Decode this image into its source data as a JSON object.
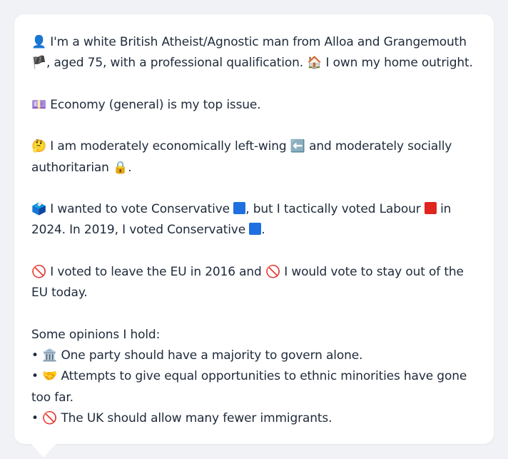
{
  "profile": {
    "p1": {
      "e1": "👤",
      "t1": " I'm a white British Atheist/Agnostic man from Alloa and Grangemouth ",
      "e2": "🏴",
      "t2": ", aged 75, with a professional qualification. ",
      "e3": "🏠",
      "t3": " I own my home outright."
    },
    "p2": {
      "e1": "💷",
      "t1": " Economy (general) is my top issue."
    },
    "p3": {
      "e1": "🤔",
      "t1": " I am moderately economically left-wing ",
      "e2": "⬅️",
      "t2": " and moderately socially authoritarian ",
      "e3": "🔒",
      "t3": "."
    },
    "p4": {
      "e1": "🗳️",
      "t1": " I wanted to vote Conservative ",
      "t2": ", but I tactically voted Labour ",
      "t3": " in 2024. In 2019, I voted Conservative ",
      "t4": "."
    },
    "p5": {
      "e1": "🚫",
      "t1": " I voted to leave the EU in 2016 and ",
      "e2": "🚫",
      "t2": " I would vote to stay out of the EU today."
    },
    "opinions": {
      "heading": "Some opinions I hold:",
      "items": [
        {
          "bullet": "•",
          "icon": "🏛️",
          "text": " One party should have a majority to govern alone."
        },
        {
          "bullet": "•",
          "icon": "🤝",
          "text": " Attempts to give equal opportunities to ethnic minorities have gone too far."
        },
        {
          "bullet": "•",
          "icon": "🚫",
          "text": " The UK should allow many fewer immigrants."
        }
      ]
    }
  },
  "colors": {
    "conservative": "#1f6fe0",
    "labour": "#e0241f",
    "card": "#ffffff",
    "background": "#f1f2f5",
    "text": "#1e2a3a"
  }
}
